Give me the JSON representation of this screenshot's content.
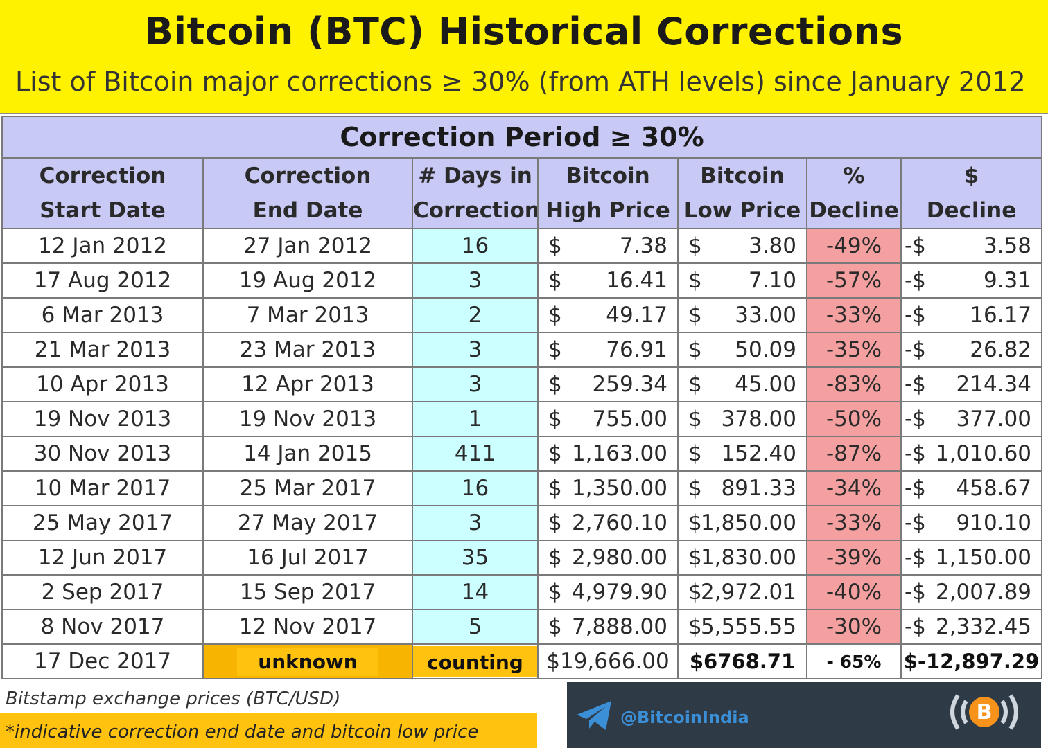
{
  "title": "Bitcoin (BTC) Historical Corrections",
  "subtitle": "List of Bitcoin major corrections ≥ 30% (from ATH levels) since January 2012",
  "period_header": "Correction Period ≥ 30%",
  "columns": [
    [
      "Correction",
      "Start Date"
    ],
    [
      "Correction",
      "End Date"
    ],
    [
      "# Days in",
      "Correction"
    ],
    [
      "Bitcoin",
      "High Price"
    ],
    [
      "Bitcoin",
      "Low Price"
    ],
    [
      "%",
      "Decline"
    ],
    [
      "$",
      "Decline"
    ]
  ],
  "currency_symbol": "$",
  "neg_currency_symbol": "-$",
  "rows": [
    {
      "start": "12 Jan 2012",
      "end": "27 Jan 2012",
      "days": "16",
      "high": "7.38",
      "low": "3.80",
      "pct": "-49%",
      "usd": "3.58"
    },
    {
      "start": "17 Aug 2012",
      "end": "19 Aug 2012",
      "days": "3",
      "high": "16.41",
      "low": "7.10",
      "pct": "-57%",
      "usd": "9.31"
    },
    {
      "start": "6 Mar 2013",
      "end": "7 Mar 2013",
      "days": "2",
      "high": "49.17",
      "low": "33.00",
      "pct": "-33%",
      "usd": "16.17"
    },
    {
      "start": "21 Mar 2013",
      "end": "23 Mar 2013",
      "days": "3",
      "high": "76.91",
      "low": "50.09",
      "pct": "-35%",
      "usd": "26.82"
    },
    {
      "start": "10 Apr 2013",
      "end": "12 Apr 2013",
      "days": "3",
      "high": "259.34",
      "low": "45.00",
      "pct": "-83%",
      "usd": "214.34"
    },
    {
      "start": "19 Nov 2013",
      "end": "19 Nov 2013",
      "days": "1",
      "high": "755.00",
      "low": "378.00",
      "pct": "-50%",
      "usd": "377.00"
    },
    {
      "start": "30 Nov 2013",
      "end": "14 Jan 2015",
      "days": "411",
      "high": "1,163.00",
      "low": "152.40",
      "pct": "-87%",
      "usd": "1,010.60"
    },
    {
      "start": "10 Mar 2017",
      "end": "25 Mar 2017",
      "days": "16",
      "high": "1,350.00",
      "low": "891.33",
      "pct": "-34%",
      "usd": "458.67"
    },
    {
      "start": "25 May 2017",
      "end": "27 May 2017",
      "days": "3",
      "high": "2,760.10",
      "low": "1,850.00",
      "pct": "-33%",
      "usd": "910.10"
    },
    {
      "start": "12 Jun 2017",
      "end": "16 Jul 2017",
      "days": "35",
      "high": "2,980.00",
      "low": "1,830.00",
      "pct": "-39%",
      "usd": "1,150.00"
    },
    {
      "start": "2 Sep 2017",
      "end": "15 Sep 2017",
      "days": "14",
      "high": "4,979.90",
      "low": "2,972.01",
      "pct": "-40%",
      "usd": "2,007.89"
    },
    {
      "start": "8 Nov 2017",
      "end": "12 Nov 2017",
      "days": "5",
      "high": "7,888.00",
      "low": "5,555.55",
      "pct": "-30%",
      "usd": "2,332.45"
    }
  ],
  "last_row": {
    "start": "17 Dec 2017",
    "end": "unknown",
    "days": "counting",
    "high": "$19,666.00",
    "low": "$6768.71",
    "pct": "- 65%",
    "usd": "$-12,897.29"
  },
  "footer": {
    "source": "Bitstamp exchange prices (BTC/USD)",
    "note": "*indicative correction end date and bitcoin low price"
  },
  "branding": {
    "handle": "@BitcoinIndia",
    "telegram_icon": "telegram-icon",
    "logo_icon": "bitcoin-broadcast-icon",
    "bg_color": "#2f3a47",
    "handle_color": "#3b8fd6"
  },
  "colors": {
    "header_bg": "#fff200",
    "table_header_bg": "#c9c9f5",
    "days_bg": "#ccffff",
    "decline_bg": "#f4a0a0",
    "badge_bg": "#ffc20e"
  }
}
